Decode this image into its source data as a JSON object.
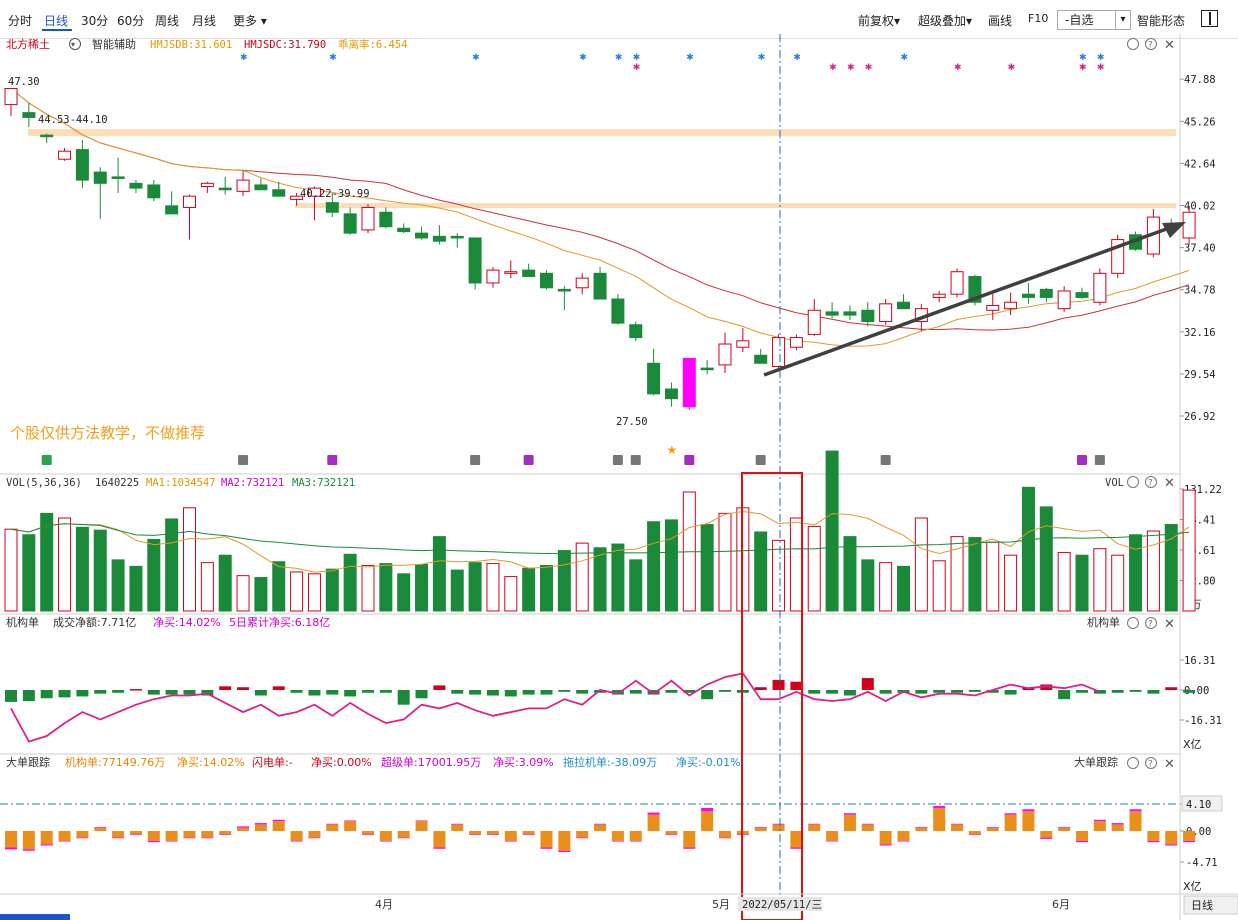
{
  "toolbar": {
    "fenshi": "分时",
    "rixian": "日线",
    "m30": "30分",
    "m60": "60分",
    "zhouxian": "周线",
    "yuexian": "月线",
    "gengduo": "更多",
    "qianfuquan": "前复权",
    "chaojidiejia": "超级叠加",
    "huaxian": "画线",
    "f10": "F10",
    "zixuan": "-自选",
    "zhinengxingtai": "智能形态"
  },
  "main": {
    "stock_name": "北方稀土",
    "assist": "智能辅助",
    "hmjsdb": "HMJSDB:31.601",
    "hmjsdc": "HMJSDC:31.790",
    "divergence": "乖离率:6.454",
    "label_4730": "47.30",
    "label_4453": "44.53-44.10",
    "label_4022": "40.22-39.99",
    "label_2750": "27.50",
    "watermark": "个股仅供方法教学，不做推荐",
    "yticks": [
      "47.88",
      "45.26",
      "42.64",
      "40.02",
      "37.40",
      "34.78",
      "32.16",
      "29.54",
      "26.92"
    ]
  },
  "volume": {
    "title": "VOL(5,36,36)",
    "value": "1640225",
    "ma1": "MA1:1034547",
    "ma2": "MA2:732121",
    "ma3": "MA3:732121",
    "label": "VOL",
    "yticks": [
      "131.22",
      "98.41",
      "65.61",
      "32.80"
    ],
    "unit": "X万"
  },
  "inst": {
    "title": "机构单",
    "net": "成交净额:7.71亿",
    "buy": "净买:14.02%",
    "cum": "5日累计净买:6.18亿",
    "label": "机构单",
    "yticks": [
      "16.31",
      "0.00",
      "-16.31"
    ],
    "unit": "X亿"
  },
  "big": {
    "title": "大单跟踪",
    "jgd": "机构单:77149.76万",
    "jgd_buy": "净买:14.02%",
    "sdd": "闪电单:-",
    "sdd_buy": "净买:0.00%",
    "cjd": "超级单:17001.95万",
    "cjd_buy": "净买:3.09%",
    "tljd": "拖拉机单:-38.09万",
    "tljd_buy": "净买:-0.01%",
    "label": "大单跟踪",
    "yticks": [
      "4.10",
      "0.00",
      "-4.71"
    ],
    "unit": "X亿"
  },
  "xaxis": {
    "apr": "4月",
    "may": "5月",
    "jun": "6月",
    "cursor_date": "2022/05/11/三",
    "period": "日线"
  },
  "colors": {
    "up": "#d0021b",
    "down": "#1a8a3a",
    "highlight": "#ff00ff",
    "orange": "#e8901a",
    "band": "#fddcb8"
  },
  "chart_data": {
    "type": "candlestick",
    "ylim": [
      25.8,
      49.2
    ],
    "candles": [
      [
        46.3,
        47.3,
        45.6,
        47.3
      ],
      [
        45.8,
        46.4,
        44.9,
        45.5
      ],
      [
        44.4,
        44.5,
        43.9,
        44.3
      ],
      [
        42.9,
        43.6,
        42.8,
        43.4
      ],
      [
        43.5,
        44.1,
        41.1,
        41.6
      ],
      [
        42.1,
        42.4,
        39.2,
        41.4
      ],
      [
        41.8,
        43.0,
        40.8,
        41.7
      ],
      [
        41.4,
        41.6,
        40.8,
        41.1
      ],
      [
        41.3,
        41.6,
        40.3,
        40.5
      ],
      [
        40.0,
        40.9,
        39.5,
        39.5
      ],
      [
        39.9,
        40.7,
        37.9,
        40.6
      ],
      [
        41.2,
        41.5,
        40.8,
        41.4
      ],
      [
        41.1,
        41.8,
        40.7,
        41.0
      ],
      [
        40.9,
        42.2,
        40.6,
        41.6
      ],
      [
        41.3,
        41.7,
        41.0,
        41.0
      ],
      [
        41.0,
        41.5,
        40.8,
        40.6
      ],
      [
        40.4,
        40.8,
        40.0,
        40.6
      ],
      [
        40.6,
        41.2,
        39.1,
        41.1
      ],
      [
        40.2,
        40.8,
        39.3,
        39.6
      ],
      [
        39.5,
        39.9,
        38.2,
        38.3
      ],
      [
        38.5,
        40.1,
        38.3,
        39.9
      ],
      [
        39.6,
        39.9,
        38.6,
        38.7
      ],
      [
        38.6,
        38.9,
        38.3,
        38.4
      ],
      [
        38.3,
        38.7,
        37.9,
        38.0
      ],
      [
        38.1,
        38.8,
        37.6,
        37.8
      ],
      [
        38.1,
        38.3,
        37.4,
        38.0
      ],
      [
        38.0,
        38.0,
        34.8,
        35.2
      ],
      [
        35.2,
        36.2,
        34.9,
        36.0
      ],
      [
        35.8,
        36.6,
        35.5,
        35.9
      ],
      [
        36.0,
        36.4,
        35.8,
        35.6
      ],
      [
        35.8,
        36.0,
        34.8,
        34.9
      ],
      [
        34.8,
        35.0,
        33.5,
        34.7
      ],
      [
        34.9,
        35.8,
        34.5,
        35.5
      ],
      [
        35.8,
        36.2,
        34.2,
        34.2
      ],
      [
        34.2,
        34.5,
        32.6,
        32.7
      ],
      [
        32.6,
        32.8,
        31.6,
        31.8
      ],
      [
        30.2,
        31.1,
        28.2,
        28.3
      ],
      [
        28.6,
        29.0,
        27.5,
        28.0
      ],
      [
        27.5,
        30.5,
        27.3,
        30.5
      ],
      [
        29.9,
        30.4,
        29.5,
        29.8
      ],
      [
        30.1,
        32.1,
        29.6,
        31.4
      ],
      [
        31.2,
        32.4,
        30.9,
        31.6
      ],
      [
        30.7,
        31.1,
        30.2,
        30.2
      ],
      [
        30.0,
        32.0,
        29.7,
        31.8
      ],
      [
        31.2,
        32.0,
        31.0,
        31.8
      ],
      [
        32.0,
        34.2,
        31.9,
        33.5
      ],
      [
        33.4,
        34.0,
        33.0,
        33.2
      ],
      [
        33.4,
        33.8,
        32.9,
        33.2
      ],
      [
        33.5,
        34.0,
        32.5,
        32.8
      ],
      [
        32.8,
        34.2,
        32.6,
        33.9
      ],
      [
        34.0,
        34.5,
        33.6,
        33.6
      ],
      [
        32.8,
        33.9,
        32.2,
        33.6
      ],
      [
        34.3,
        34.7,
        34.0,
        34.5
      ],
      [
        34.5,
        36.1,
        34.3,
        35.9
      ],
      [
        35.6,
        35.7,
        33.8,
        34.0
      ],
      [
        33.5,
        34.5,
        32.9,
        33.8
      ],
      [
        33.6,
        34.6,
        33.2,
        34.0
      ],
      [
        34.5,
        35.2,
        33.9,
        34.3
      ],
      [
        34.8,
        34.9,
        34.0,
        34.3
      ],
      [
        33.6,
        35.0,
        33.4,
        34.7
      ],
      [
        34.6,
        34.9,
        34.2,
        34.3
      ],
      [
        34.0,
        36.1,
        33.8,
        35.8
      ],
      [
        35.8,
        38.2,
        35.5,
        37.9
      ],
      [
        38.2,
        38.4,
        37.2,
        37.3
      ],
      [
        37.0,
        39.8,
        36.8,
        39.3
      ],
      [
        38.9,
        39.2,
        38.4,
        38.5
      ],
      [
        38.0,
        40.0,
        37.6,
        39.6
      ]
    ],
    "volumes": [
      88,
      82,
      105,
      100,
      90,
      87,
      55,
      48,
      77,
      99,
      111,
      52,
      60,
      38,
      36,
      53,
      42,
      40,
      45,
      61,
      49,
      51,
      40,
      50,
      80,
      44,
      52,
      51,
      37,
      46,
      49,
      65,
      73,
      68,
      72,
      55,
      96,
      98,
      128,
      93,
      105,
      111,
      85,
      76,
      100,
      91,
      172,
      80,
      55,
      52,
      48,
      100,
      54,
      80,
      79,
      74,
      60,
      133,
      112,
      63,
      60,
      67,
      60,
      82,
      86,
      93,
      130,
      136,
      92,
      138,
      83,
      115
    ],
    "inst_net": [
      -6.5,
      -6.0,
      -4.5,
      -4.0,
      -3.5,
      -2.0,
      -1.5,
      0.5,
      -2.5,
      -2.5,
      -2.5,
      -3.0,
      2.0,
      1.5,
      -3.0,
      2.0,
      -1.5,
      -3.0,
      -2.5,
      -3.5,
      -1.5,
      -1.5,
      -8.0,
      -4.5,
      2.5,
      -2.0,
      -2.5,
      -3.0,
      -3.5,
      -2.5,
      -2.5,
      -1.0,
      -2.0,
      -1.5,
      -2.5,
      -2.0,
      -2.5,
      -1.5,
      -1.5,
      -5.0,
      -1.0,
      -1.5,
      1.5,
      5.5,
      4.5,
      -2.0,
      -2.0,
      -3.0,
      6.5,
      -2.0,
      -1.5,
      -2.0,
      -1.5,
      -1.5,
      -1.0,
      -1.5,
      -2.5,
      1.5,
      3.0,
      -5.0,
      -1.5,
      -2.0,
      -1.5,
      -1.0,
      -2.0,
      1.5,
      -1.5,
      2.5,
      2.0,
      -4.0,
      5.0,
      2.0,
      -1.5
    ],
    "inst_cum": [
      -10,
      -28,
      -25,
      -18,
      -12,
      -16,
      -12,
      -8,
      -5,
      -3,
      -3,
      -2,
      -7,
      -12,
      -8,
      -14,
      -12,
      -8,
      -14,
      -7,
      -13,
      -18,
      -16,
      -8,
      -10,
      -7,
      -11,
      -14,
      -12,
      -10,
      -10,
      -5,
      -8,
      0,
      -2,
      5,
      -2,
      5,
      -3,
      3,
      7,
      9,
      -5,
      -5,
      -1,
      -5,
      -6,
      -5,
      -1,
      -6,
      -1,
      -4,
      -2,
      -2,
      -3,
      0,
      3,
      1,
      2,
      1,
      3,
      -1
    ],
    "big_orange": [
      -2.5,
      -2.8,
      -2.0,
      -1.5,
      -1.0,
      0.5,
      -1.0,
      -0.5,
      -1.5,
      -1.5,
      -1.0,
      -1.0,
      -0.5,
      0.5,
      1.0,
      1.5,
      -1.5,
      -1.0,
      1.0,
      1.5,
      -0.5,
      -1.5,
      -1.0,
      1.5,
      -2.5,
      1.0,
      -0.5,
      -0.5,
      -1.5,
      -0.5,
      -2.5,
      -3.0,
      -1.0,
      1.0,
      -1.5,
      -1.5,
      2.5,
      -0.5,
      -2.5,
      3.0,
      -1.0,
      -0.5,
      0.5,
      1.0,
      -2.5,
      1.0,
      -1.5,
      2.5,
      1.0,
      -2.0,
      -1.5,
      0.5,
      3.5,
      1.0,
      -0.5,
      0.5,
      2.5,
      3.0,
      -1.0,
      0.5,
      -1.5,
      1.5,
      1.0,
      3.0,
      -1.5,
      -2.0,
      -1.5,
      1.0,
      3.0
    ],
    "big_magenta": [
      0.3,
      0.2,
      0.2,
      0.1,
      0.1,
      0.1,
      0.1,
      0.1,
      0.2,
      0.1,
      0.1,
      0.1,
      0.1,
      0.2,
      0.2,
      0.2,
      0.1,
      0.1,
      0.1,
      0.1,
      0.1,
      0.1,
      0.1,
      0.1,
      0.2,
      0.1,
      0.1,
      0.1,
      0.1,
      0.1,
      0.2,
      0.2,
      0.1,
      0.1,
      0.1,
      0.1,
      0.3,
      0.1,
      0.2,
      0.5,
      0.1,
      0.1,
      0.1,
      0.1,
      0.2,
      0.1,
      0.1,
      0.2,
      0.1,
      0.2,
      0.1,
      0.1,
      0.3,
      0.1,
      0.1,
      0.1,
      0.2,
      0.3,
      0.2,
      0.1,
      0.2,
      0.2,
      0.2,
      0.3,
      0.2,
      0.2,
      0.2,
      0.3,
      0.2
    ]
  }
}
